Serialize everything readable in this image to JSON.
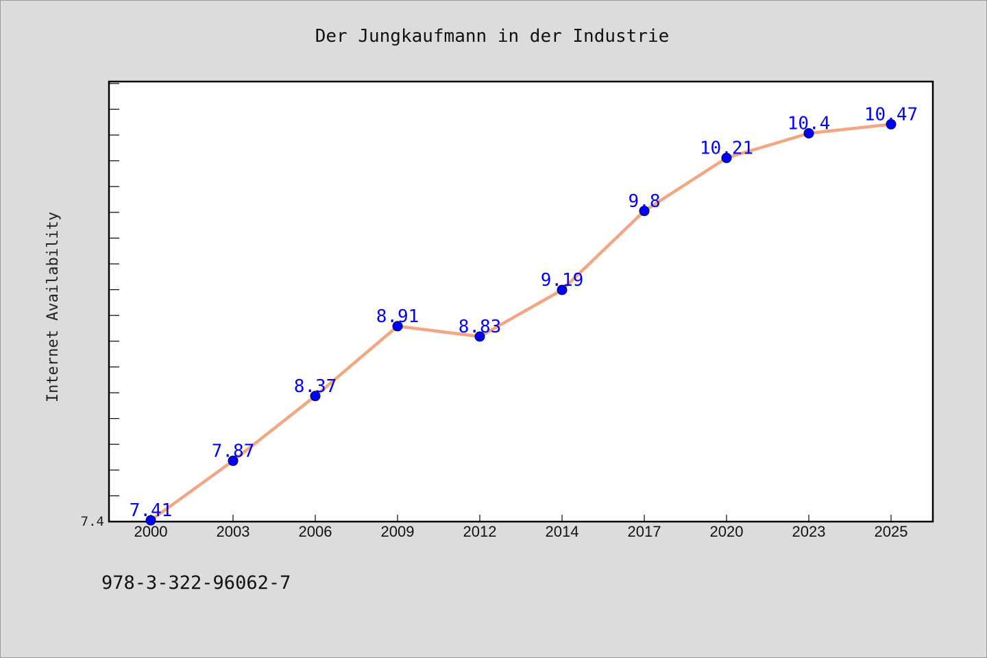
{
  "chart_data": {
    "type": "line",
    "title": "Der Jungkaufmann in der Industrie",
    "xlabel": "",
    "ylabel": "Internet Availability",
    "categories": [
      "2000",
      "2003",
      "2006",
      "2009",
      "2012",
      "2014",
      "2017",
      "2020",
      "2023",
      "2025"
    ],
    "series": [
      {
        "values": [
          7.41,
          7.87,
          8.37,
          8.91,
          8.83,
          9.19,
          9.8,
          10.21,
          10.4,
          10.47
        ],
        "line_color": "#f4a582",
        "marker_color": "#0000ff",
        "label_color": "#0000ff"
      }
    ],
    "ylim": [
      7.4,
      10.8
    ],
    "y_tick_labels": [
      "7.4"
    ],
    "grid": false,
    "legend": "none",
    "plot_background": "#ffffff",
    "figure_background": "#dcdcdc"
  },
  "footer": {
    "isbn": "978-3-322-96062-7"
  }
}
